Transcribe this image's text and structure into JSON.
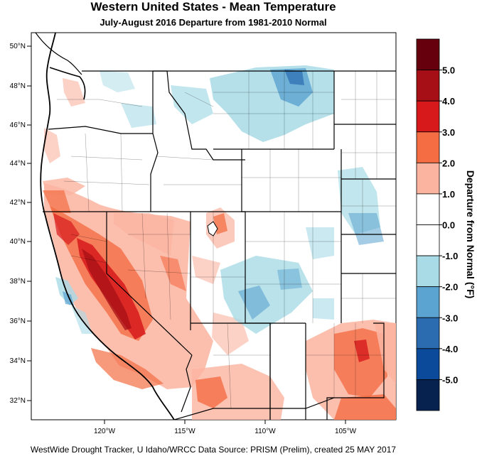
{
  "title": "Western United States - Mean Temperature",
  "subtitle": "July-August 2016  Departure from 1981-2010 Normal",
  "credit": "WestWide Drought Tracker, U Idaho/WRCC Data Source: PRISM (Prelim), created 25 MAY 2017",
  "lat_labels": [
    "50°N",
    "48°N",
    "46°N",
    "44°N",
    "42°N",
    "40°N",
    "38°N",
    "36°N",
    "34°N",
    "32°N"
  ],
  "lon_labels": [
    "120°W",
    "115°W",
    "110°W",
    "105°W"
  ],
  "colorbar": {
    "title": "Departure from Normal (°F)",
    "labels": [
      "5.0",
      "4.0",
      "3.0",
      "2.0",
      "1.0",
      "0.0",
      "-1.0",
      "-2.0",
      "-3.0",
      "-4.0",
      "-5.0"
    ],
    "colors": [
      "#67000d",
      "#a50f15",
      "#d7191c",
      "#f46d43",
      "#fbb4a0",
      "#ffffff",
      "#ffffff",
      "#a8dbe6",
      "#5ba3d0",
      "#2b6cb0",
      "#0b4a9a",
      "#08224f"
    ]
  }
}
